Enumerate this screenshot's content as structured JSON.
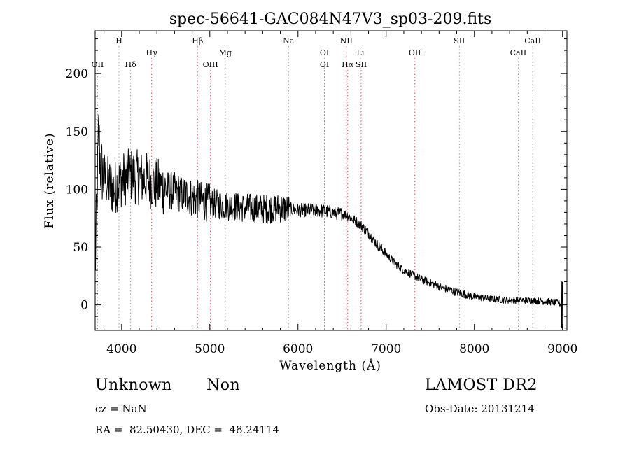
{
  "chart_data": {
    "type": "line",
    "title": "spec-56641-GAC084N47V3_sp03-209.fits",
    "xlabel": "Wavelength (Å)",
    "ylabel": "Flux (relative)",
    "xlim": [
      3700,
      9050
    ],
    "ylim": [
      -22,
      237
    ],
    "x_ticks": [
      4000,
      5000,
      6000,
      7000,
      8000,
      9000
    ],
    "y_ticks": [
      0,
      50,
      100,
      150,
      200
    ],
    "grid": false,
    "line_color": "#000000",
    "line_marker_color_red": "#e06060",
    "line_marker_color_gray": "#9a9a9a",
    "spectrum_anchor_points": [
      [
        3700,
        30
      ],
      [
        3720,
        90
      ],
      [
        3740,
        150
      ],
      [
        3760,
        120
      ],
      [
        3800,
        110
      ],
      [
        3850,
        105
      ],
      [
        3900,
        100
      ],
      [
        4000,
        108
      ],
      [
        4100,
        112
      ],
      [
        4200,
        110
      ],
      [
        4300,
        108
      ],
      [
        4400,
        104
      ],
      [
        4500,
        100
      ],
      [
        4600,
        98
      ],
      [
        4700,
        96
      ],
      [
        4800,
        93
      ],
      [
        4900,
        90
      ],
      [
        5000,
        88
      ],
      [
        5200,
        86
      ],
      [
        5400,
        84
      ],
      [
        5600,
        83
      ],
      [
        5800,
        84
      ],
      [
        6000,
        82
      ],
      [
        6200,
        82
      ],
      [
        6400,
        80
      ],
      [
        6550,
        78
      ],
      [
        6700,
        70
      ],
      [
        6800,
        62
      ],
      [
        6900,
        52
      ],
      [
        7000,
        44
      ],
      [
        7100,
        36
      ],
      [
        7200,
        30
      ],
      [
        7400,
        22
      ],
      [
        7600,
        16
      ],
      [
        7800,
        11
      ],
      [
        8000,
        7
      ],
      [
        8200,
        5
      ],
      [
        8400,
        4
      ],
      [
        8600,
        4
      ],
      [
        8800,
        3
      ],
      [
        8950,
        2
      ],
      [
        9000,
        0
      ]
    ],
    "spectral_lines": [
      {
        "label": "OII",
        "x": 3727,
        "row": 3,
        "color": "gray"
      },
      {
        "label": "H",
        "x": 3970,
        "row": 1,
        "color": "gray"
      },
      {
        "label": "Hδ",
        "x": 4102,
        "row": 3,
        "color": "gray"
      },
      {
        "label": "Hγ",
        "x": 4340,
        "row": 2,
        "color": "red"
      },
      {
        "label": "Hβ",
        "x": 4861,
        "row": 1,
        "color": "red"
      },
      {
        "label": "OIII",
        "x": 5007,
        "row": 3,
        "color": "red"
      },
      {
        "label": "Mg",
        "x": 5175,
        "row": 2,
        "color": "gray"
      },
      {
        "label": "Na",
        "x": 5893,
        "row": 1,
        "color": "gray"
      },
      {
        "label": "OI",
        "x": 6300,
        "row": 2,
        "color": "gray"
      },
      {
        "label": "OI",
        "x": 6300,
        "row": 3,
        "color": "gray"
      },
      {
        "label": "NII",
        "x": 6548,
        "row": 1,
        "color": "red"
      },
      {
        "label": "Hα",
        "x": 6563,
        "row": 3,
        "color": "red"
      },
      {
        "label": "Li",
        "x": 6708,
        "row": 2,
        "color": "gray"
      },
      {
        "label": "SII",
        "x": 6717,
        "row": 3,
        "color": "red"
      },
      {
        "label": "OII",
        "x": 7325,
        "row": 2,
        "color": "red"
      },
      {
        "label": "SII",
        "x": 7830,
        "row": 1,
        "color": "gray"
      },
      {
        "label": "CaII",
        "x": 8498,
        "row": 2,
        "color": "gray"
      },
      {
        "label": "CaII",
        "x": 8662,
        "row": 1,
        "color": "gray"
      }
    ]
  },
  "info": {
    "class": "Unknown",
    "subclass": "Non",
    "cz": "cz = NaN",
    "radec": "RA =  82.50430, DEC =  48.24114",
    "survey": "LAMOST DR2",
    "obsdate": "Obs-Date: 20131214"
  }
}
